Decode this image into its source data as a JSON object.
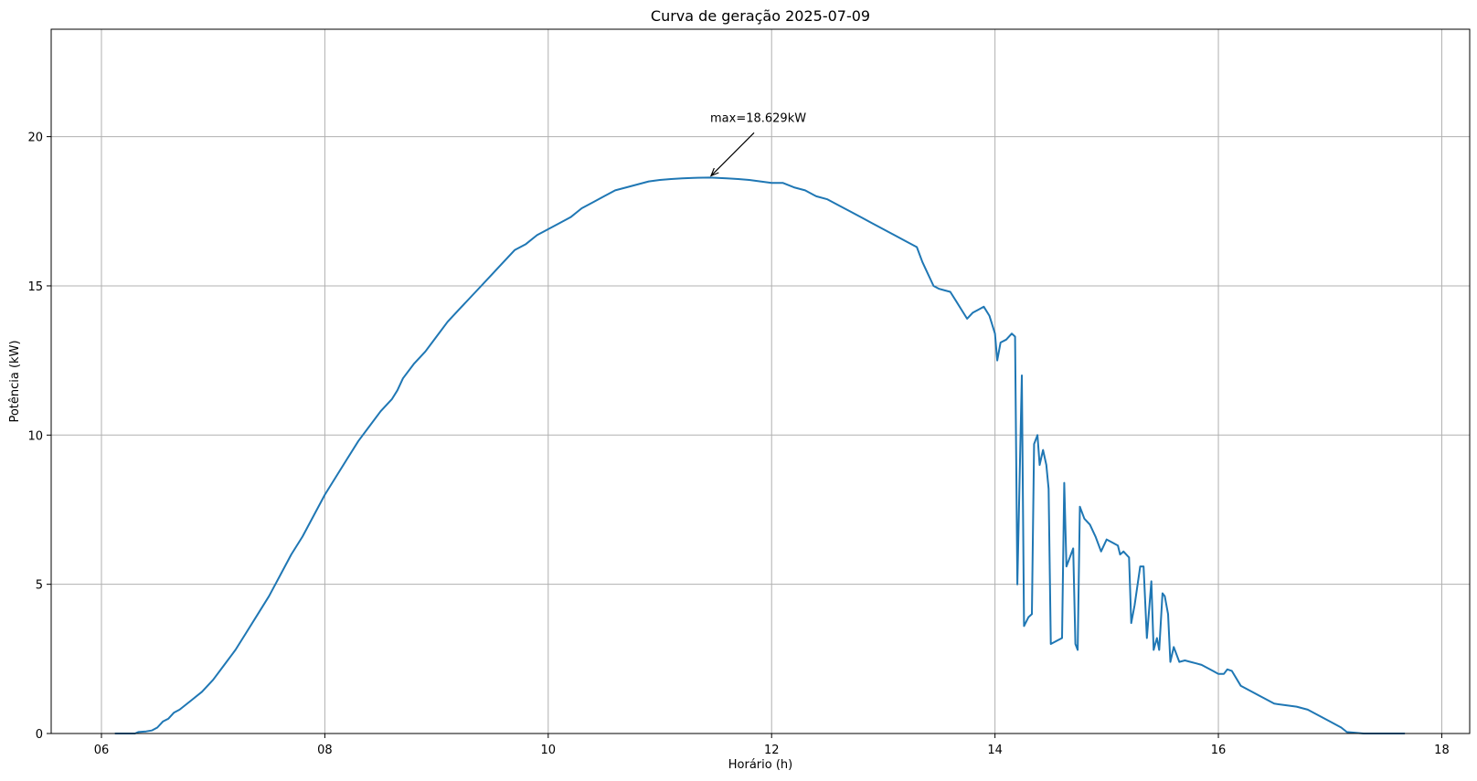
{
  "chart_data": {
    "type": "line",
    "title": "Curva de geração 2025-07-09",
    "xlabel": "Horário (h)",
    "ylabel": "Potência (kW)",
    "xlim": [
      5.55,
      18.25
    ],
    "ylim": [
      0,
      23.6
    ],
    "grid": true,
    "line_color": "#1f77b4",
    "x_ticks": [
      {
        "value": 6,
        "label": "06"
      },
      {
        "value": 8,
        "label": "08"
      },
      {
        "value": 10,
        "label": "10"
      },
      {
        "value": 12,
        "label": "12"
      },
      {
        "value": 14,
        "label": "14"
      },
      {
        "value": 16,
        "label": "16"
      },
      {
        "value": 18,
        "label": "18"
      }
    ],
    "y_ticks": [
      {
        "value": 0,
        "label": "0"
      },
      {
        "value": 5,
        "label": "5"
      },
      {
        "value": 10,
        "label": "10"
      },
      {
        "value": 15,
        "label": "15"
      },
      {
        "value": 20,
        "label": "20"
      }
    ],
    "annotation": {
      "text": "max=18.629kW",
      "x": 11.45,
      "y": 18.629,
      "text_x": 11.45,
      "text_y": 20.5
    },
    "series": [
      {
        "x": [
          6.12,
          6.3,
          6.33,
          6.4,
          6.45,
          6.5,
          6.55,
          6.6,
          6.65,
          6.7,
          6.8,
          6.9,
          7.0,
          7.1,
          7.2,
          7.3,
          7.4,
          7.5,
          7.6,
          7.7,
          7.8,
          7.9,
          8.0,
          8.1,
          8.2,
          8.3,
          8.4,
          8.5,
          8.6,
          8.65,
          8.7,
          8.8,
          8.9,
          9.0,
          9.1,
          9.2,
          9.3,
          9.4,
          9.5,
          9.6,
          9.7,
          9.8,
          9.9,
          10.0,
          10.1,
          10.2,
          10.3,
          10.4,
          10.5,
          10.6,
          10.7,
          10.8,
          10.9,
          11.0,
          11.1,
          11.2,
          11.3,
          11.45,
          11.6,
          11.7,
          11.8,
          11.9,
          12.0,
          12.1,
          12.2,
          12.3,
          12.4,
          12.5,
          12.6,
          12.7,
          12.8,
          12.9,
          13.0,
          13.1,
          13.2,
          13.3,
          13.35,
          13.4,
          13.45,
          13.5,
          13.55,
          13.6,
          13.65,
          13.7,
          13.75,
          13.8,
          13.85,
          13.9,
          13.95,
          14.0,
          14.02,
          14.05,
          14.1,
          14.15,
          14.18,
          14.2,
          14.24,
          14.26,
          14.3,
          14.33,
          14.35,
          14.38,
          14.4,
          14.43,
          14.46,
          14.48,
          14.5,
          14.55,
          14.6,
          14.62,
          14.64,
          14.66,
          14.7,
          14.72,
          14.74,
          14.76,
          14.8,
          14.85,
          14.9,
          14.95,
          15.0,
          15.05,
          15.1,
          15.12,
          15.15,
          15.2,
          15.22,
          15.25,
          15.3,
          15.33,
          15.36,
          15.4,
          15.42,
          15.45,
          15.47,
          15.5,
          15.52,
          15.55,
          15.57,
          15.6,
          15.65,
          15.7,
          15.75,
          15.8,
          15.85,
          15.9,
          15.95,
          16.0,
          16.05,
          16.08,
          16.12,
          16.2,
          16.3,
          16.4,
          16.5,
          16.6,
          16.7,
          16.8,
          16.9,
          17.0,
          17.1,
          17.15,
          17.3,
          17.5,
          17.67
        ],
        "y": [
          0.0,
          0.0,
          0.05,
          0.07,
          0.1,
          0.2,
          0.4,
          0.5,
          0.7,
          0.8,
          1.1,
          1.4,
          1.8,
          2.3,
          2.8,
          3.4,
          4.0,
          4.6,
          5.3,
          6.0,
          6.6,
          7.3,
          8.0,
          8.6,
          9.2,
          9.8,
          10.3,
          10.8,
          11.2,
          11.5,
          11.9,
          12.4,
          12.8,
          13.3,
          13.8,
          14.2,
          14.6,
          15.0,
          15.4,
          15.8,
          16.2,
          16.4,
          16.7,
          16.9,
          17.1,
          17.3,
          17.6,
          17.8,
          18.0,
          18.2,
          18.3,
          18.4,
          18.5,
          18.55,
          18.58,
          18.6,
          18.62,
          18.629,
          18.6,
          18.58,
          18.55,
          18.5,
          18.45,
          18.45,
          18.3,
          18.2,
          18.0,
          17.9,
          17.7,
          17.5,
          17.3,
          17.1,
          16.9,
          16.7,
          16.5,
          16.3,
          15.8,
          15.4,
          15.0,
          14.9,
          14.85,
          14.8,
          14.5,
          14.2,
          13.9,
          14.1,
          14.2,
          14.3,
          14.0,
          13.4,
          12.5,
          13.1,
          13.2,
          13.4,
          13.3,
          5.0,
          12.0,
          3.6,
          3.9,
          4.0,
          9.7,
          10.0,
          9.0,
          9.5,
          9.0,
          8.2,
          3.0,
          3.1,
          3.2,
          8.4,
          5.6,
          5.8,
          6.2,
          3.0,
          2.8,
          7.6,
          7.2,
          7.0,
          6.6,
          6.1,
          6.5,
          6.4,
          6.3,
          6.0,
          6.1,
          5.9,
          3.7,
          4.3,
          5.6,
          5.6,
          3.2,
          5.1,
          2.8,
          3.2,
          2.8,
          4.7,
          4.6,
          4.0,
          2.4,
          2.9,
          2.4,
          2.45,
          2.4,
          2.35,
          2.3,
          2.2,
          2.1,
          2.0,
          2.0,
          2.15,
          2.1,
          1.6,
          1.4,
          1.2,
          1.0,
          0.95,
          0.9,
          0.8,
          0.6,
          0.4,
          0.2,
          0.05,
          0.0,
          0.0,
          0.0
        ]
      }
    ]
  }
}
